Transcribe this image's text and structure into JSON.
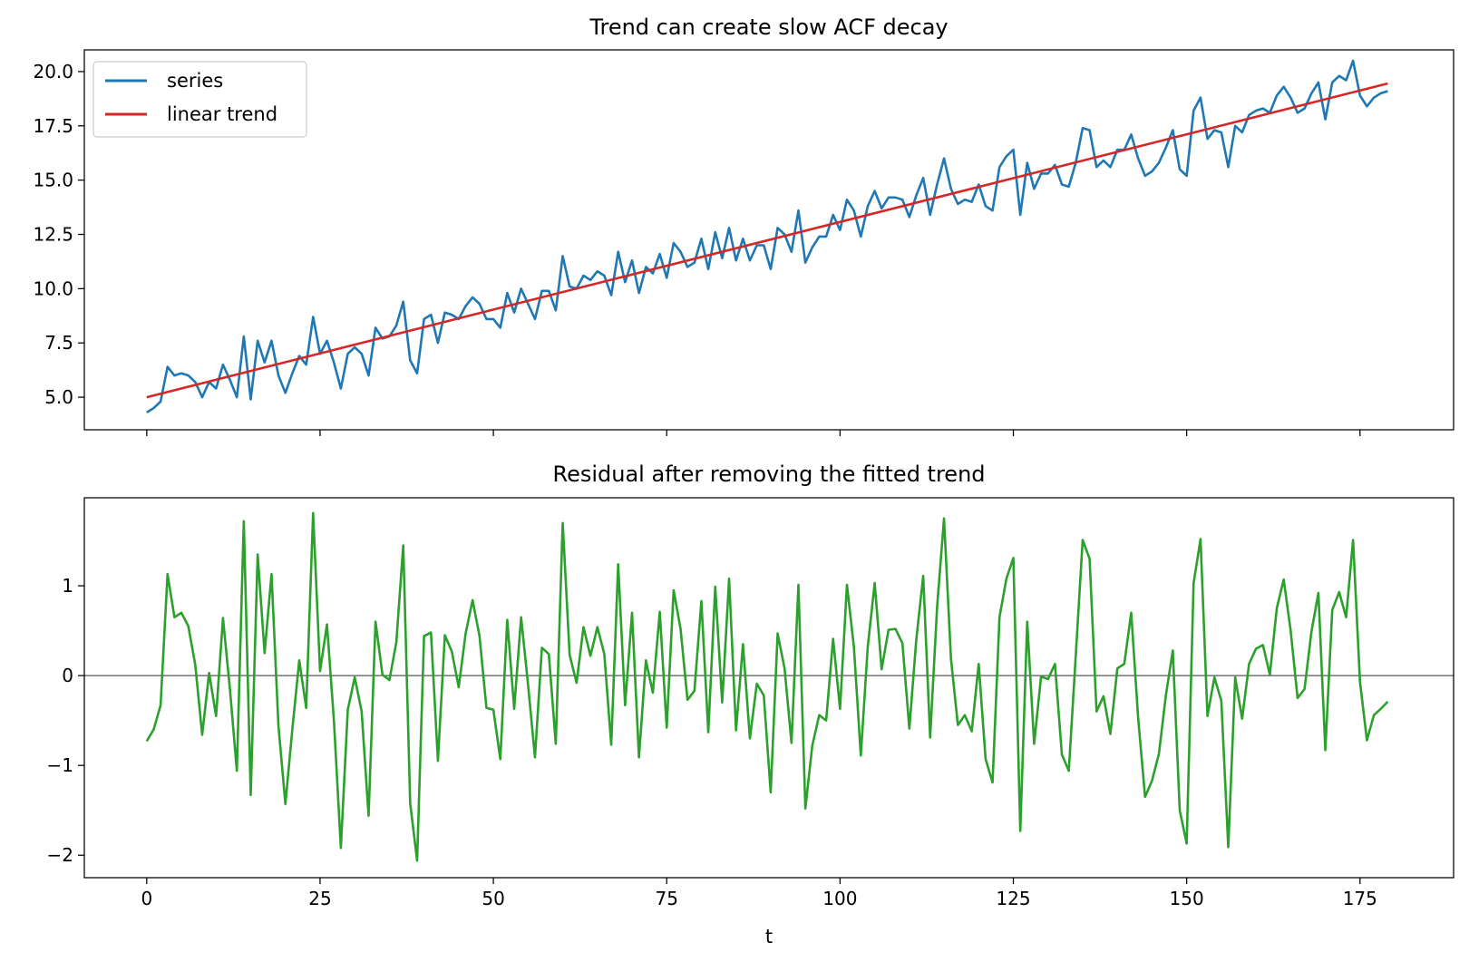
{
  "chart_data": [
    {
      "type": "line",
      "title": "Trend can create slow ACF decay",
      "xlabel": "",
      "ylabel": "",
      "xlim": [
        -9,
        188.5
      ],
      "ylim": [
        3.5,
        21.0
      ],
      "xticks": [
        0,
        25,
        50,
        75,
        100,
        125,
        150,
        175
      ],
      "yticks": [
        5.0,
        7.5,
        10.0,
        12.5,
        15.0,
        17.5,
        20.0
      ],
      "ytick_labels": [
        "5.0",
        "7.5",
        "10.0",
        "12.5",
        "15.0",
        "17.5",
        "20.0"
      ],
      "show_xtick_labels": false,
      "grid": false,
      "legend": "top-left",
      "series": [
        {
          "name": "series",
          "color": "#1f77b4",
          "x_start": 0,
          "x_step": 1,
          "values": [
            4.3,
            4.5,
            4.8,
            6.4,
            6.0,
            6.1,
            6.0,
            5.7,
            5.0,
            5.7,
            5.4,
            6.5,
            5.8,
            5.0,
            7.8,
            4.9,
            7.6,
            6.6,
            7.6,
            6.0,
            5.2,
            6.1,
            6.9,
            6.5,
            8.7,
            7.0,
            7.6,
            6.6,
            5.4,
            7.0,
            7.3,
            7.0,
            6.0,
            8.2,
            7.7,
            7.8,
            8.3,
            9.4,
            6.7,
            6.1,
            8.6,
            8.8,
            7.5,
            8.9,
            8.8,
            8.6,
            9.2,
            9.6,
            9.3,
            8.6,
            8.6,
            8.2,
            9.8,
            8.9,
            10.0,
            9.3,
            8.6,
            9.9,
            9.9,
            9.0,
            11.5,
            10.1,
            10.0,
            10.6,
            10.4,
            10.8,
            10.6,
            9.7,
            11.7,
            10.3,
            11.3,
            9.8,
            11.0,
            10.7,
            11.6,
            10.5,
            12.1,
            11.7,
            11.0,
            11.2,
            12.3,
            10.9,
            12.6,
            11.4,
            12.8,
            11.3,
            12.3,
            11.3,
            12.0,
            12.0,
            10.9,
            12.8,
            12.5,
            11.7,
            13.6,
            11.2,
            11.9,
            12.4,
            12.4,
            13.4,
            12.7,
            14.1,
            13.6,
            12.4,
            13.8,
            14.5,
            13.7,
            14.2,
            14.2,
            14.1,
            13.3,
            14.3,
            15.1,
            13.4,
            14.8,
            16.0,
            14.6,
            13.9,
            14.1,
            14.0,
            14.8,
            13.8,
            13.6,
            15.6,
            16.1,
            16.4,
            13.4,
            15.8,
            14.6,
            15.3,
            15.3,
            15.7,
            14.8,
            14.7,
            15.8,
            17.4,
            17.3,
            15.6,
            15.9,
            15.6,
            16.4,
            16.4,
            17.1,
            16.0,
            15.2,
            15.4,
            15.8,
            16.5,
            17.3,
            15.5,
            15.2,
            18.2,
            18.8,
            16.9,
            17.3,
            17.2,
            15.6,
            17.5,
            17.2,
            18.0,
            18.2,
            18.3,
            18.1,
            18.9,
            19.3,
            18.8,
            18.1,
            18.3,
            19.0,
            19.5,
            17.8,
            19.5,
            19.8,
            19.6,
            20.5,
            18.9,
            18.4,
            18.8,
            19.0,
            19.1
          ]
        },
        {
          "name": "linear trend",
          "color": "#d62728",
          "x": [
            0,
            179
          ],
          "values": [
            5.0,
            19.45
          ]
        }
      ]
    },
    {
      "type": "line",
      "title": "Residual after removing the fitted trend",
      "xlabel": "t",
      "ylabel": "",
      "xlim": [
        -9,
        188.5
      ],
      "ylim": [
        -2.25,
        1.98
      ],
      "xticks": [
        0,
        25,
        50,
        75,
        100,
        125,
        150,
        175
      ],
      "xtick_labels": [
        "0",
        "25",
        "50",
        "75",
        "100",
        "125",
        "150",
        "175"
      ],
      "yticks": [
        -2,
        -1,
        0,
        1
      ],
      "ytick_labels": [
        "−2",
        "−1",
        "0",
        "1"
      ],
      "grid": false,
      "hline": {
        "y": 0,
        "color": "#555555"
      },
      "series": [
        {
          "color": "#2ca02c",
          "x_start": 0,
          "x_step": 1,
          "values": [
            -0.73,
            -0.6,
            -0.33,
            1.13,
            0.65,
            0.7,
            0.55,
            0.12,
            -0.66,
            0.03,
            -0.45,
            0.64,
            -0.15,
            -1.06,
            1.72,
            -1.33,
            1.35,
            0.25,
            1.13,
            -0.56,
            -1.43,
            -0.6,
            0.17,
            -0.36,
            1.81,
            0.05,
            0.57,
            -0.5,
            -1.92,
            -0.38,
            -0.02,
            -0.4,
            -1.56,
            0.6,
            0.01,
            -0.05,
            0.37,
            1.45,
            -1.42,
            -2.06,
            0.44,
            0.48,
            -0.95,
            0.45,
            0.27,
            -0.13,
            0.47,
            0.84,
            0.44,
            -0.36,
            -0.38,
            -0.93,
            0.62,
            -0.37,
            0.65,
            -0.1,
            -0.91,
            0.31,
            0.24,
            -0.76,
            1.7,
            0.23,
            -0.08,
            0.54,
            0.22,
            0.54,
            0.24,
            -0.77,
            1.24,
            -0.33,
            0.7,
            -0.91,
            0.17,
            -0.19,
            0.71,
            -0.58,
            0.95,
            0.52,
            -0.27,
            -0.17,
            0.83,
            -0.63,
            0.99,
            -0.3,
            1.08,
            -0.61,
            0.35,
            -0.7,
            -0.09,
            -0.22,
            -1.3,
            0.47,
            0.08,
            -0.75,
            1.01,
            -1.48,
            -0.78,
            -0.44,
            -0.5,
            0.41,
            -0.37,
            1.01,
            0.32,
            -0.89,
            0.32,
            1.03,
            0.07,
            0.51,
            0.52,
            0.36,
            -0.59,
            0.4,
            1.11,
            -0.69,
            0.76,
            1.75,
            0.19,
            -0.55,
            -0.44,
            -0.62,
            0.13,
            -0.93,
            -1.19,
            0.65,
            1.08,
            1.31,
            -1.73,
            0.6,
            -0.76,
            -0.01,
            -0.04,
            0.13,
            -0.88,
            -1.06,
            0.22,
            1.51,
            1.3,
            -0.4,
            -0.23,
            -0.65,
            0.08,
            0.13,
            0.7,
            -0.47,
            -1.35,
            -1.17,
            -0.87,
            -0.22,
            0.28,
            -1.5,
            -1.87,
            1.03,
            1.52,
            -0.45,
            -0.02,
            -0.28,
            -1.91,
            -0.02,
            -0.48,
            0.13,
            0.3,
            0.34,
            0.01,
            0.75,
            1.07,
            0.5,
            -0.25,
            -0.15,
            0.49,
            0.92,
            -0.83,
            0.73,
            0.93,
            0.65,
            1.51,
            -0.07,
            -0.72,
            -0.44,
            -0.37,
            -0.29
          ]
        }
      ]
    }
  ],
  "legend": {
    "items": [
      {
        "label": "series",
        "color": "#1f77b4"
      },
      {
        "label": "linear trend",
        "color": "#d62728"
      }
    ]
  }
}
